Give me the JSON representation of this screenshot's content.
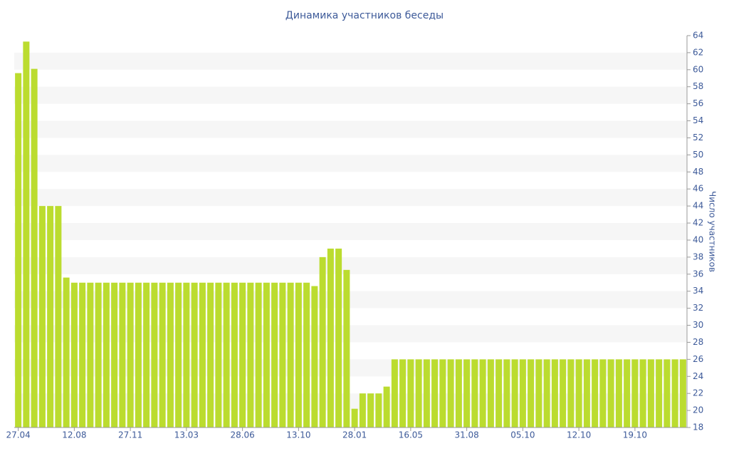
{
  "chart_data": {
    "type": "bar",
    "title": "Динамика участников беседы",
    "y_label": "Число участников",
    "categories": [
      "27.04",
      null,
      null,
      null,
      null,
      null,
      null,
      "12.08",
      null,
      null,
      null,
      null,
      null,
      null,
      "27.11",
      null,
      null,
      null,
      null,
      null,
      null,
      "13.03",
      null,
      null,
      null,
      null,
      null,
      null,
      "28.06",
      null,
      null,
      null,
      null,
      null,
      null,
      "13.10",
      null,
      null,
      null,
      null,
      null,
      null,
      "28.01",
      null,
      null,
      null,
      null,
      null,
      null,
      "16.05",
      null,
      null,
      null,
      null,
      null,
      null,
      "31.08",
      null,
      null,
      null,
      null,
      null,
      null,
      "05.10",
      null,
      null,
      null,
      null,
      null,
      null,
      "12.10",
      null,
      null,
      null,
      null,
      null,
      null,
      "19.10",
      null,
      null,
      null,
      null,
      null,
      null
    ],
    "values": [
      59.6,
      63.3,
      60.1,
      44,
      44,
      44,
      35.6,
      35,
      35,
      35,
      35,
      35,
      35,
      35,
      35,
      35,
      35,
      35,
      35,
      35,
      35,
      35,
      35,
      35,
      35,
      35,
      35,
      35,
      35,
      35,
      35,
      35,
      35,
      35,
      35,
      35,
      35,
      34.6,
      38,
      39,
      39,
      36.5,
      20.2,
      22,
      22,
      22,
      22.8,
      26,
      26,
      26,
      26,
      26,
      26,
      26,
      26,
      26,
      26,
      26,
      26,
      26,
      26,
      26,
      26,
      26,
      26,
      26,
      26,
      26,
      26,
      26,
      26,
      26,
      26,
      26,
      26,
      26,
      26,
      26,
      26,
      26,
      26,
      26,
      26,
      26
    ],
    "color": "#bbdc2f",
    "ylim": [
      18,
      64
    ],
    "yticks": [
      18,
      20,
      22,
      24,
      26,
      28,
      30,
      32,
      34,
      36,
      38,
      40,
      42,
      44,
      46,
      48,
      50,
      52,
      54,
      56,
      58,
      60,
      62,
      64
    ],
    "grid": "bands",
    "y_axis_side": "right"
  }
}
